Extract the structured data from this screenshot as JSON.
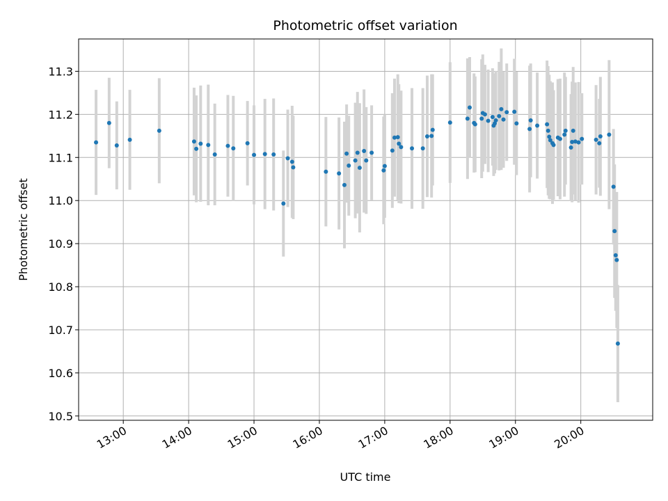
{
  "chart_data": {
    "type": "scatter",
    "title": "Photometric offset variation",
    "xlabel": "UTC time",
    "ylabel": "Photometric offset",
    "x_unit": "time of day (UTC, HH:MM)",
    "xlim": [
      "12:19",
      "21:06"
    ],
    "ylim": [
      10.49,
      11.375
    ],
    "grid": true,
    "x_ticks": [
      "13:00",
      "14:00",
      "15:00",
      "16:00",
      "17:00",
      "18:00",
      "19:00",
      "20:00"
    ],
    "y_ticks": [
      "10.5",
      "10.6",
      "10.7",
      "10.8",
      "10.9",
      "11.0",
      "11.1",
      "11.2",
      "11.3"
    ],
    "colors": {
      "points": "#1f77b4",
      "errorbars": "#d3d3d3",
      "grid": "#b0b0b0"
    },
    "series": [
      {
        "x": [
          "12:35",
          "12:47",
          "12:54",
          "13:06",
          "13:33",
          "14:05",
          "14:07",
          "14:11",
          "14:18",
          "14:24",
          "14:36",
          "14:41",
          "14:54",
          "15:00",
          "15:10",
          "15:18",
          "15:27",
          "15:31",
          "15:35",
          "15:36",
          "16:06",
          "16:18",
          "16:23",
          "16:25",
          "16:27",
          "16:33",
          "16:35",
          "16:37",
          "16:41",
          "16:43",
          "16:48",
          "16:59",
          "17:00",
          "17:07",
          "17:09",
          "17:12",
          "17:13",
          "17:15",
          "17:25",
          "17:35",
          "17:39",
          "17:43",
          "17:44",
          "18:00",
          "18:16",
          "18:18",
          "18:22",
          "18:23",
          "18:29",
          "18:30",
          "18:32",
          "18:35",
          "18:39",
          "18:40",
          "18:41",
          "18:42",
          "18:45",
          "18:47",
          "18:49",
          "18:52",
          "18:59",
          "19:01",
          "19:13",
          "19:14",
          "19:20",
          "19:29",
          "19:30",
          "19:31",
          "19:32",
          "19:34",
          "19:35",
          "19:39",
          "19:41",
          "19:45",
          "19:46",
          "19:51",
          "19:52",
          "19:53",
          "19:55",
          "19:58",
          "20:01",
          "20:14",
          "20:17",
          "20:18",
          "20:26",
          "20:30",
          "20:31",
          "20:32",
          "20:33",
          "20:34"
        ],
        "y": [
          11.135,
          11.18,
          11.128,
          11.141,
          11.162,
          11.137,
          11.12,
          11.132,
          11.129,
          11.107,
          11.127,
          11.121,
          11.133,
          11.106,
          11.108,
          11.107,
          10.993,
          11.098,
          11.09,
          11.077,
          11.067,
          11.063,
          11.036,
          11.109,
          11.081,
          11.093,
          11.111,
          11.076,
          11.115,
          11.093,
          11.111,
          11.07,
          11.08,
          11.116,
          11.146,
          11.147,
          11.132,
          11.124,
          11.121,
          11.121,
          11.149,
          11.15,
          11.164,
          11.181,
          11.19,
          11.216,
          11.18,
          11.177,
          11.19,
          11.203,
          11.2,
          11.185,
          11.194,
          11.174,
          11.179,
          11.186,
          11.196,
          11.212,
          11.188,
          11.205,
          11.206,
          11.179,
          11.166,
          11.186,
          11.174,
          11.177,
          11.162,
          11.148,
          11.14,
          11.133,
          11.129,
          11.146,
          11.143,
          11.153,
          11.162,
          11.123,
          11.136,
          11.162,
          11.137,
          11.135,
          11.143,
          11.141,
          11.133,
          11.149,
          11.153,
          11.032,
          10.929,
          10.873,
          10.862,
          10.668
        ],
        "yerr": [
          0.122,
          0.105,
          0.102,
          0.116,
          0.122,
          0.125,
          0.124,
          0.135,
          0.14,
          0.118,
          0.118,
          0.122,
          0.098,
          0.115,
          0.128,
          0.13,
          0.123,
          0.113,
          0.13,
          0.12,
          0.127,
          0.13,
          0.147,
          0.114,
          0.116,
          0.134,
          0.141,
          0.15,
          0.143,
          0.124,
          0.11,
          0.125,
          0.12,
          0.133,
          0.137,
          0.146,
          0.138,
          0.131,
          0.14,
          0.14,
          0.141,
          0.143,
          0.129,
          0.14,
          0.14,
          0.117,
          0.115,
          0.111,
          0.138,
          0.136,
          0.115,
          0.119,
          0.113,
          0.117,
          0.116,
          0.115,
          0.126,
          0.141,
          0.112,
          0.113,
          0.123,
          0.12,
          0.147,
          0.132,
          0.123,
          0.148,
          0.15,
          0.144,
          0.137,
          0.141,
          0.127,
          0.136,
          0.14,
          0.144,
          0.125,
          0.124,
          0.14,
          0.148,
          0.137,
          0.14,
          0.106,
          0.127,
          0.103,
          0.138,
          0.173,
          0.134,
          0.155,
          0.129,
          0.158,
          0.136
        ]
      }
    ]
  }
}
